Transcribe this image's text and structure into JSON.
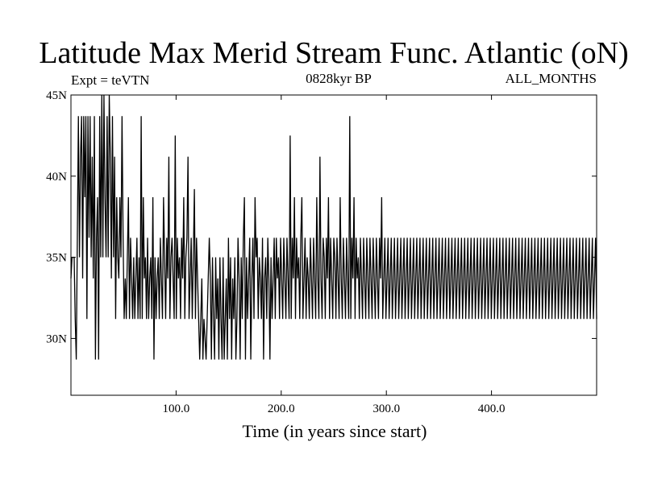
{
  "chart_data": {
    "type": "line",
    "title": "Latitude Max Merid Stream Func. Atlantic (oN)",
    "left_annotation": "Expt = teVTN",
    "center_annotation": "0828kyr BP",
    "right_annotation": "ALL_MONTHS",
    "xlabel": "Time (in years since start)",
    "ylabel": "",
    "xlim": [
      0,
      500
    ],
    "ylim": [
      26.5,
      45
    ],
    "x_ticks": [
      100,
      200,
      300,
      400
    ],
    "x_tick_labels": [
      "100.0",
      "200.0",
      "300.0",
      "400.0"
    ],
    "y_ticks": [
      30,
      35,
      40,
      45
    ],
    "y_tick_labels": [
      "30N",
      "35N",
      "40N",
      "45N"
    ],
    "discrete_levels": [
      28.7,
      31.2,
      33.7,
      36.2,
      38.7,
      41.2,
      43.7,
      45.0
    ],
    "series": [
      {
        "values": [
          33.7,
          35.0,
          35.0,
          35.0,
          31.2,
          28.7,
          36.2,
          43.7,
          35.0,
          41.2,
          43.7,
          33.7,
          43.7,
          38.7,
          43.7,
          31.2,
          43.7,
          36.2,
          43.7,
          35.0,
          41.2,
          33.7,
          43.7,
          28.7,
          36.2,
          38.7,
          28.7,
          43.7,
          35.0,
          45.0,
          35.0,
          45.0,
          38.7,
          35.0,
          43.7,
          35.0,
          45.0,
          41.2,
          33.7,
          43.7,
          35.0,
          41.2,
          31.2,
          38.7,
          35.0,
          33.7,
          38.7,
          35.0,
          43.7,
          36.2,
          31.2,
          33.7,
          31.2,
          35.0,
          38.7,
          31.2,
          36.2,
          33.7,
          31.2,
          35.0,
          31.2,
          33.7,
          36.2,
          31.2,
          35.0,
          31.2,
          43.7,
          31.2,
          38.7,
          33.7,
          35.0,
          31.2,
          36.2,
          31.2,
          33.7,
          35.0,
          31.2,
          38.7,
          28.7,
          35.0,
          31.2,
          33.7,
          35.0,
          31.2,
          36.2,
          33.7,
          31.2,
          38.7,
          35.0,
          31.2,
          36.2,
          33.7,
          41.2,
          31.2,
          35.0,
          36.2,
          33.7,
          31.2,
          42.5,
          31.2,
          36.2,
          33.7,
          35.0,
          31.2,
          36.2,
          33.7,
          38.7,
          31.2,
          35.0,
          36.2,
          41.2,
          31.2,
          33.7,
          36.2,
          31.2,
          35.0,
          39.2,
          31.2,
          36.2,
          33.7,
          31.2,
          28.7,
          31.2,
          33.7,
          28.7,
          31.2,
          30.0,
          28.7,
          31.2,
          33.7,
          36.2,
          33.7,
          28.7,
          35.0,
          31.2,
          28.7,
          35.0,
          31.2,
          33.7,
          28.7,
          35.0,
          31.2,
          28.7,
          35.0,
          28.7,
          31.2,
          33.7,
          28.7,
          36.2,
          31.2,
          35.0,
          28.7,
          33.7,
          31.2,
          35.0,
          28.7,
          31.2,
          36.2,
          33.7,
          28.7,
          35.0,
          31.2,
          36.2,
          38.7,
          28.7,
          35.0,
          31.2,
          33.7,
          36.2,
          28.7,
          33.7,
          36.2,
          31.2,
          38.7,
          35.0,
          36.2,
          31.2,
          35.0,
          33.7,
          31.2,
          36.2,
          28.7,
          33.7,
          35.0,
          31.2,
          36.2,
          33.7,
          28.7,
          35.0,
          31.2,
          33.7,
          36.2,
          31.2,
          36.2,
          33.7,
          35.0,
          31.2,
          36.2,
          33.7,
          31.2,
          36.2,
          33.7,
          31.2,
          36.2,
          33.7,
          31.2,
          42.5,
          31.2,
          36.2,
          33.7,
          38.7,
          31.2,
          36.2,
          33.7,
          35.0,
          31.2,
          36.2,
          38.7,
          31.2,
          33.7,
          36.2,
          31.2,
          35.0,
          33.7,
          31.2,
          36.2,
          33.7,
          31.2,
          36.2,
          33.7,
          31.2,
          38.7,
          33.7,
          31.2,
          41.2,
          33.7,
          31.2,
          36.2,
          35.0,
          31.2,
          36.2,
          33.7,
          38.7,
          31.2,
          36.2,
          33.7,
          31.2,
          36.2,
          35.0,
          31.2,
          36.2,
          33.7,
          31.2,
          38.7,
          33.7,
          31.2,
          36.2,
          33.7,
          31.2,
          36.2,
          33.7,
          31.2,
          43.7,
          31.2,
          36.2,
          33.7,
          38.7,
          31.2,
          36.2,
          33.7,
          35.0,
          31.2,
          36.2,
          33.7,
          31.2,
          36.2,
          33.7,
          31.2,
          36.2,
          33.7,
          31.2,
          36.2,
          33.7,
          31.2,
          36.2,
          33.7,
          31.2,
          36.2,
          33.7,
          31.2,
          36.2,
          33.7,
          38.7,
          31.2,
          33.7,
          36.2,
          31.2,
          33.7,
          36.2,
          31.2,
          33.7,
          36.2,
          31.2,
          33.7,
          36.2,
          31.2,
          33.7,
          36.2,
          31.2,
          33.7,
          36.2,
          31.2,
          33.7,
          36.2,
          31.2,
          33.7,
          36.2,
          31.2,
          33.7,
          36.2,
          31.2,
          33.7,
          36.2,
          31.2,
          33.7,
          36.2,
          31.2,
          33.7,
          36.2,
          31.2,
          33.7,
          36.2,
          31.2,
          33.7,
          36.2,
          31.2,
          33.7,
          36.2,
          31.2,
          33.7,
          36.2,
          31.2,
          33.7,
          36.2,
          31.2,
          33.7,
          36.2,
          31.2,
          33.7,
          36.2,
          31.2,
          33.7,
          36.2,
          31.2,
          33.7,
          36.2,
          31.2,
          33.7,
          36.2,
          31.2,
          33.7,
          36.2,
          31.2,
          33.7,
          36.2,
          31.2,
          33.7,
          36.2,
          31.2,
          33.7,
          36.2,
          31.2,
          33.7,
          36.2,
          31.2,
          33.7,
          36.2,
          31.2,
          33.7,
          36.2,
          31.2,
          33.7,
          36.2,
          31.2,
          33.7,
          36.2,
          31.2,
          33.7,
          36.2,
          31.2,
          33.7,
          36.2,
          31.2,
          33.7,
          36.2,
          31.2,
          33.7,
          36.2,
          31.2,
          33.7,
          36.2,
          31.2,
          33.7,
          36.2,
          31.2,
          33.7,
          36.2,
          31.2,
          33.7,
          36.2,
          31.2,
          33.7,
          36.2,
          31.2,
          33.7,
          36.2,
          31.2,
          33.7,
          36.2,
          31.2,
          33.7,
          36.2,
          31.2,
          33.7,
          36.2,
          31.2,
          33.7,
          36.2,
          31.2,
          33.7,
          36.2,
          31.2,
          33.7,
          36.2,
          31.2,
          33.7,
          36.2,
          31.2,
          33.7,
          36.2,
          31.2,
          33.7,
          36.2,
          31.2,
          33.7,
          36.2,
          31.2,
          33.7,
          36.2,
          31.2,
          33.7,
          36.2,
          31.2,
          33.7,
          36.2,
          31.2,
          33.7,
          36.2,
          31.2,
          33.7,
          36.2,
          31.2,
          33.7,
          36.2,
          31.2,
          33.7,
          36.2,
          31.2,
          33.7,
          36.2,
          31.2,
          33.7,
          36.2,
          31.2,
          33.7,
          36.2,
          31.2,
          33.7,
          36.2,
          31.2,
          33.7,
          36.2,
          31.2,
          33.7,
          36.2,
          31.2,
          33.7,
          36.2,
          31.2,
          33.7,
          36.2,
          31.2,
          33.7,
          36.2,
          31.2
        ]
      }
    ]
  }
}
